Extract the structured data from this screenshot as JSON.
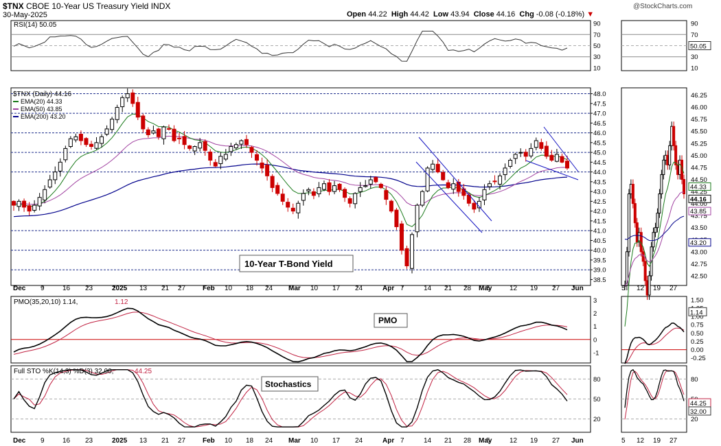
{
  "header": {
    "symbol": "$TNX",
    "name": "CBOE 10-Year US Treasury Yield",
    "exchange": "INDX",
    "date": "30-May-2025",
    "open_label": "Open",
    "open": "44.22",
    "high_label": "High",
    "high": "44.42",
    "low_label": "Low",
    "low": "43.94",
    "close_label": "Close",
    "close": "44.16",
    "chg_label": "Chg",
    "chg": "-0.08 (-0.18%)",
    "watermark": "@StockCharts.com"
  },
  "colors": {
    "up": "#000000",
    "down": "#cc0000",
    "ema20": "#1a7a1a",
    "ema50": "#a040a0",
    "ema200": "#00008b",
    "wedge": "#1010c0",
    "pmo": "#000000",
    "pmo_signal": "#c02040",
    "sto_k": "#000000",
    "sto_d": "#c02040",
    "zero": "#cc0000"
  },
  "chart_data": [
    {
      "type": "line",
      "panel": "rsi",
      "legend": "RSI(14) 50.05",
      "ticks": [
        90,
        70,
        50,
        30,
        10
      ],
      "value_label": "50.05",
      "ylim": [
        5,
        95
      ]
    },
    {
      "type": "candlestick",
      "panel": "price",
      "legend_main": "$TNX (Daily) 44.16",
      "legend_ema20": "EMA(20) 44.33",
      "legend_ema50": "EMA(50) 43.85",
      "legend_ema200": "EMA(200) 43.20",
      "annotation": "10-Year T-Bond Yield",
      "yticks": [
        48.0,
        47.5,
        47.0,
        46.5,
        46.0,
        45.5,
        45.0,
        44.5,
        44.0,
        43.5,
        43.0,
        42.5,
        42.0,
        41.5,
        41.0,
        40.5,
        40.0,
        39.5,
        39.0,
        38.5
      ],
      "ylim": [
        38.2,
        48.3
      ],
      "x_labels": [
        "Dec",
        "9",
        "16",
        "23",
        "2025",
        "13",
        "21",
        "27",
        "Feb",
        "10",
        "18",
        "24",
        "Mar",
        "10",
        "17",
        "24",
        "Apr",
        "7",
        "14",
        "21",
        "28",
        "May",
        "5",
        "12",
        "19",
        "27",
        "Jun"
      ],
      "close_path": [
        42.3,
        42.5,
        42.2,
        42.0,
        42.3,
        42.7,
        43.1,
        43.6,
        44.0,
        44.5,
        45.2,
        45.7,
        45.8,
        45.6,
        45.4,
        45.3,
        45.5,
        45.8,
        46.2,
        46.7,
        47.3,
        47.8,
        48.0,
        47.5,
        46.8,
        46.2,
        45.9,
        46.1,
        45.8,
        46.3,
        46.2,
        45.6,
        45.7,
        45.4,
        45.2,
        45.3,
        45.5,
        45.1,
        44.6,
        44.3,
        44.8,
        44.9,
        45.3,
        45.4,
        45.6,
        45.4,
        45.0,
        44.6,
        44.2,
        43.8,
        43.2,
        42.9,
        42.5,
        42.2,
        42.0,
        42.4,
        42.9,
        43.1,
        42.8,
        43.2,
        43.4,
        43.0,
        43.3,
        43.1,
        42.7,
        42.4,
        42.9,
        43.2,
        43.3,
        43.6,
        43.5,
        43.2,
        42.6,
        42.0,
        41.2,
        40.0,
        39.2,
        40.8,
        42.3,
        43.0,
        44.2,
        44.4,
        44.0,
        43.6,
        43.2,
        43.4,
        43.0,
        42.8,
        42.4,
        42.1,
        42.5,
        43.1,
        43.4,
        43.5,
        43.8,
        44.2,
        44.6,
        44.9,
        45.0,
        44.8,
        45.2,
        45.6,
        45.2,
        44.8,
        44.6,
        44.9,
        44.5,
        44.2
      ],
      "last_price": "44.16",
      "price_panel_label_a": "44.33",
      "price_panel_label_b": "44.16",
      "price_panel_label_c": "43.85",
      "price_panel_label_d": "43.20"
    },
    {
      "type": "line",
      "panel": "pmo",
      "legend_a": "PMO(35,20,10) 1.14, ",
      "legend_b": "1.12",
      "annotation": "PMO",
      "yticks": [
        3,
        2,
        1,
        0,
        -1
      ],
      "right_ticks": [
        1.5,
        1.25,
        1.0,
        0.75,
        0.5,
        0.25,
        0.0,
        -0.25
      ],
      "value_label": "1.14",
      "ylim": [
        -1.8,
        3.3
      ]
    },
    {
      "type": "line",
      "panel": "stochastics",
      "legend_a": "Full STO %K(14,3) %D(3) 32.00, ",
      "legend_b": "44.25",
      "annotation": "Stochastics",
      "yticks": [
        80,
        50,
        20
      ],
      "value_label_d": "44.25",
      "value_label_k": "32.00",
      "ylim": [
        0,
        100
      ]
    }
  ],
  "right_panel": {
    "x_labels": [
      "5",
      "12",
      "19",
      "27"
    ],
    "price_ticks": [
      46.25,
      46.0,
      45.75,
      45.5,
      45.25,
      45.0,
      44.75,
      44.5,
      44.25,
      44.0,
      43.75,
      43.5,
      43.25,
      43.0,
      42.75,
      42.5
    ]
  }
}
